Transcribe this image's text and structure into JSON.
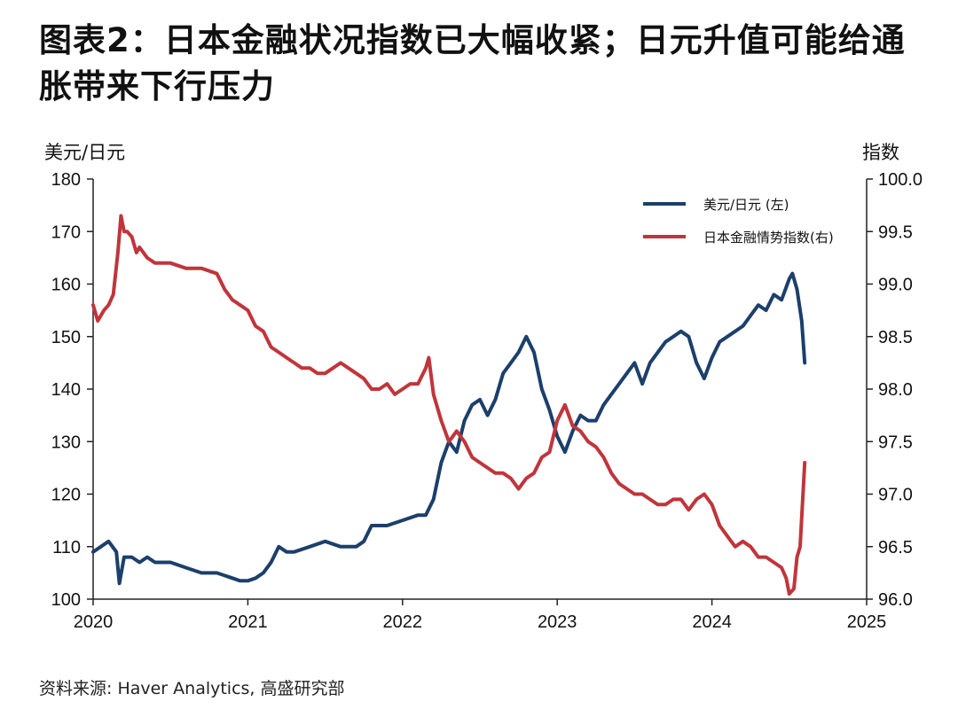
{
  "chart_data": {
    "type": "line",
    "title": "图表2：日本金融状况指数已大幅收紧；日元升值可能给通胀带来下行压力",
    "ylabel_left": "美元/日元",
    "ylabel_right": "指数",
    "x_ticks": [
      "2020",
      "2021",
      "2022",
      "2023",
      "2024",
      "2025"
    ],
    "xlim": [
      2020.0,
      2025.0
    ],
    "ylim_left": [
      100,
      180
    ],
    "ylim_right": [
      96.0,
      100.0
    ],
    "y_ticks_left": [
      "100",
      "110",
      "120",
      "130",
      "140",
      "150",
      "160",
      "170",
      "180"
    ],
    "y_ticks_right": [
      "96.0",
      "96.5",
      "97.0",
      "97.5",
      "98.0",
      "98.5",
      "99.0",
      "99.5",
      "100.0"
    ],
    "legend_position": "top-right",
    "grid": false,
    "series": [
      {
        "name": "美元/日元 (左)",
        "axis": "left",
        "color": "#1c3f6b",
        "x": [
          2020.0,
          2020.05,
          2020.1,
          2020.15,
          2020.17,
          2020.2,
          2020.25,
          2020.3,
          2020.35,
          2020.4,
          2020.5,
          2020.6,
          2020.7,
          2020.8,
          2020.9,
          2020.95,
          2021.0,
          2021.05,
          2021.1,
          2021.15,
          2021.2,
          2021.25,
          2021.3,
          2021.4,
          2021.5,
          2021.6,
          2021.7,
          2021.75,
          2021.8,
          2021.9,
          2022.0,
          2022.1,
          2022.15,
          2022.2,
          2022.25,
          2022.3,
          2022.35,
          2022.4,
          2022.45,
          2022.5,
          2022.55,
          2022.6,
          2022.65,
          2022.7,
          2022.75,
          2022.8,
          2022.85,
          2022.9,
          2022.95,
          2023.0,
          2023.05,
          2023.1,
          2023.15,
          2023.2,
          2023.25,
          2023.3,
          2023.35,
          2023.4,
          2023.45,
          2023.5,
          2023.55,
          2023.6,
          2023.65,
          2023.7,
          2023.75,
          2023.8,
          2023.85,
          2023.9,
          2023.95,
          2024.0,
          2024.05,
          2024.1,
          2024.15,
          2024.2,
          2024.25,
          2024.3,
          2024.35,
          2024.4,
          2024.45,
          2024.5,
          2024.52,
          2024.55,
          2024.58,
          2024.6
        ],
        "values": [
          109,
          110,
          111,
          109,
          103,
          108,
          108,
          107,
          108,
          107,
          107,
          106,
          105,
          105,
          104,
          103.5,
          103.5,
          104,
          105,
          107,
          110,
          109,
          109,
          110,
          111,
          110,
          110,
          111,
          114,
          114,
          115,
          116,
          116,
          119,
          126,
          130,
          128,
          134,
          137,
          138,
          135,
          138,
          143,
          145,
          147,
          150,
          147,
          140,
          136,
          131,
          128,
          132,
          135,
          134,
          134,
          137,
          139,
          141,
          143,
          145,
          141,
          145,
          147,
          149,
          150,
          151,
          150,
          145,
          142,
          146,
          149,
          150,
          151,
          152,
          154,
          156,
          155,
          158,
          157,
          161,
          162,
          159,
          153,
          145
        ],
        "line_width": 4
      },
      {
        "name": "日本金融情势指数(右)",
        "axis": "right",
        "color": "#c0353b",
        "x": [
          2020.0,
          2020.03,
          2020.07,
          2020.1,
          2020.13,
          2020.16,
          2020.18,
          2020.2,
          2020.22,
          2020.25,
          2020.28,
          2020.3,
          2020.35,
          2020.4,
          2020.5,
          2020.6,
          2020.7,
          2020.8,
          2020.85,
          2020.9,
          2020.95,
          2021.0,
          2021.05,
          2021.1,
          2021.15,
          2021.2,
          2021.25,
          2021.3,
          2021.35,
          2021.4,
          2021.45,
          2021.5,
          2021.55,
          2021.6,
          2021.65,
          2021.7,
          2021.75,
          2021.8,
          2021.85,
          2021.9,
          2021.95,
          2022.0,
          2022.05,
          2022.1,
          2022.15,
          2022.17,
          2022.2,
          2022.25,
          2022.3,
          2022.35,
          2022.4,
          2022.45,
          2022.5,
          2022.55,
          2022.6,
          2022.65,
          2022.7,
          2022.75,
          2022.8,
          2022.85,
          2022.9,
          2022.95,
          2023.0,
          2023.05,
          2023.1,
          2023.15,
          2023.2,
          2023.25,
          2023.3,
          2023.35,
          2023.4,
          2023.45,
          2023.5,
          2023.55,
          2023.6,
          2023.65,
          2023.7,
          2023.75,
          2023.8,
          2023.85,
          2023.9,
          2023.95,
          2024.0,
          2024.05,
          2024.1,
          2024.15,
          2024.2,
          2024.25,
          2024.3,
          2024.35,
          2024.4,
          2024.45,
          2024.48,
          2024.5,
          2024.53,
          2024.55,
          2024.57,
          2024.6
        ],
        "values": [
          98.8,
          98.65,
          98.75,
          98.8,
          98.9,
          99.3,
          99.65,
          99.5,
          99.5,
          99.45,
          99.3,
          99.35,
          99.25,
          99.2,
          99.2,
          99.15,
          99.15,
          99.1,
          98.95,
          98.85,
          98.8,
          98.75,
          98.6,
          98.55,
          98.4,
          98.35,
          98.3,
          98.25,
          98.2,
          98.2,
          98.15,
          98.15,
          98.2,
          98.25,
          98.2,
          98.15,
          98.1,
          98.0,
          98.0,
          98.05,
          97.95,
          98.0,
          98.05,
          98.05,
          98.2,
          98.3,
          97.95,
          97.7,
          97.5,
          97.6,
          97.5,
          97.35,
          97.3,
          97.25,
          97.2,
          97.2,
          97.15,
          97.05,
          97.15,
          97.2,
          97.35,
          97.4,
          97.7,
          97.85,
          97.65,
          97.6,
          97.5,
          97.45,
          97.35,
          97.2,
          97.1,
          97.05,
          97.0,
          97.0,
          96.95,
          96.9,
          96.9,
          96.95,
          96.95,
          96.85,
          96.95,
          97.0,
          96.9,
          96.7,
          96.6,
          96.5,
          96.55,
          96.5,
          96.4,
          96.4,
          96.35,
          96.3,
          96.2,
          96.05,
          96.1,
          96.4,
          96.5,
          97.3
        ],
        "line_width": 4
      }
    ]
  },
  "source_note": "资料来源: Haver Analytics, 高盛研究部"
}
